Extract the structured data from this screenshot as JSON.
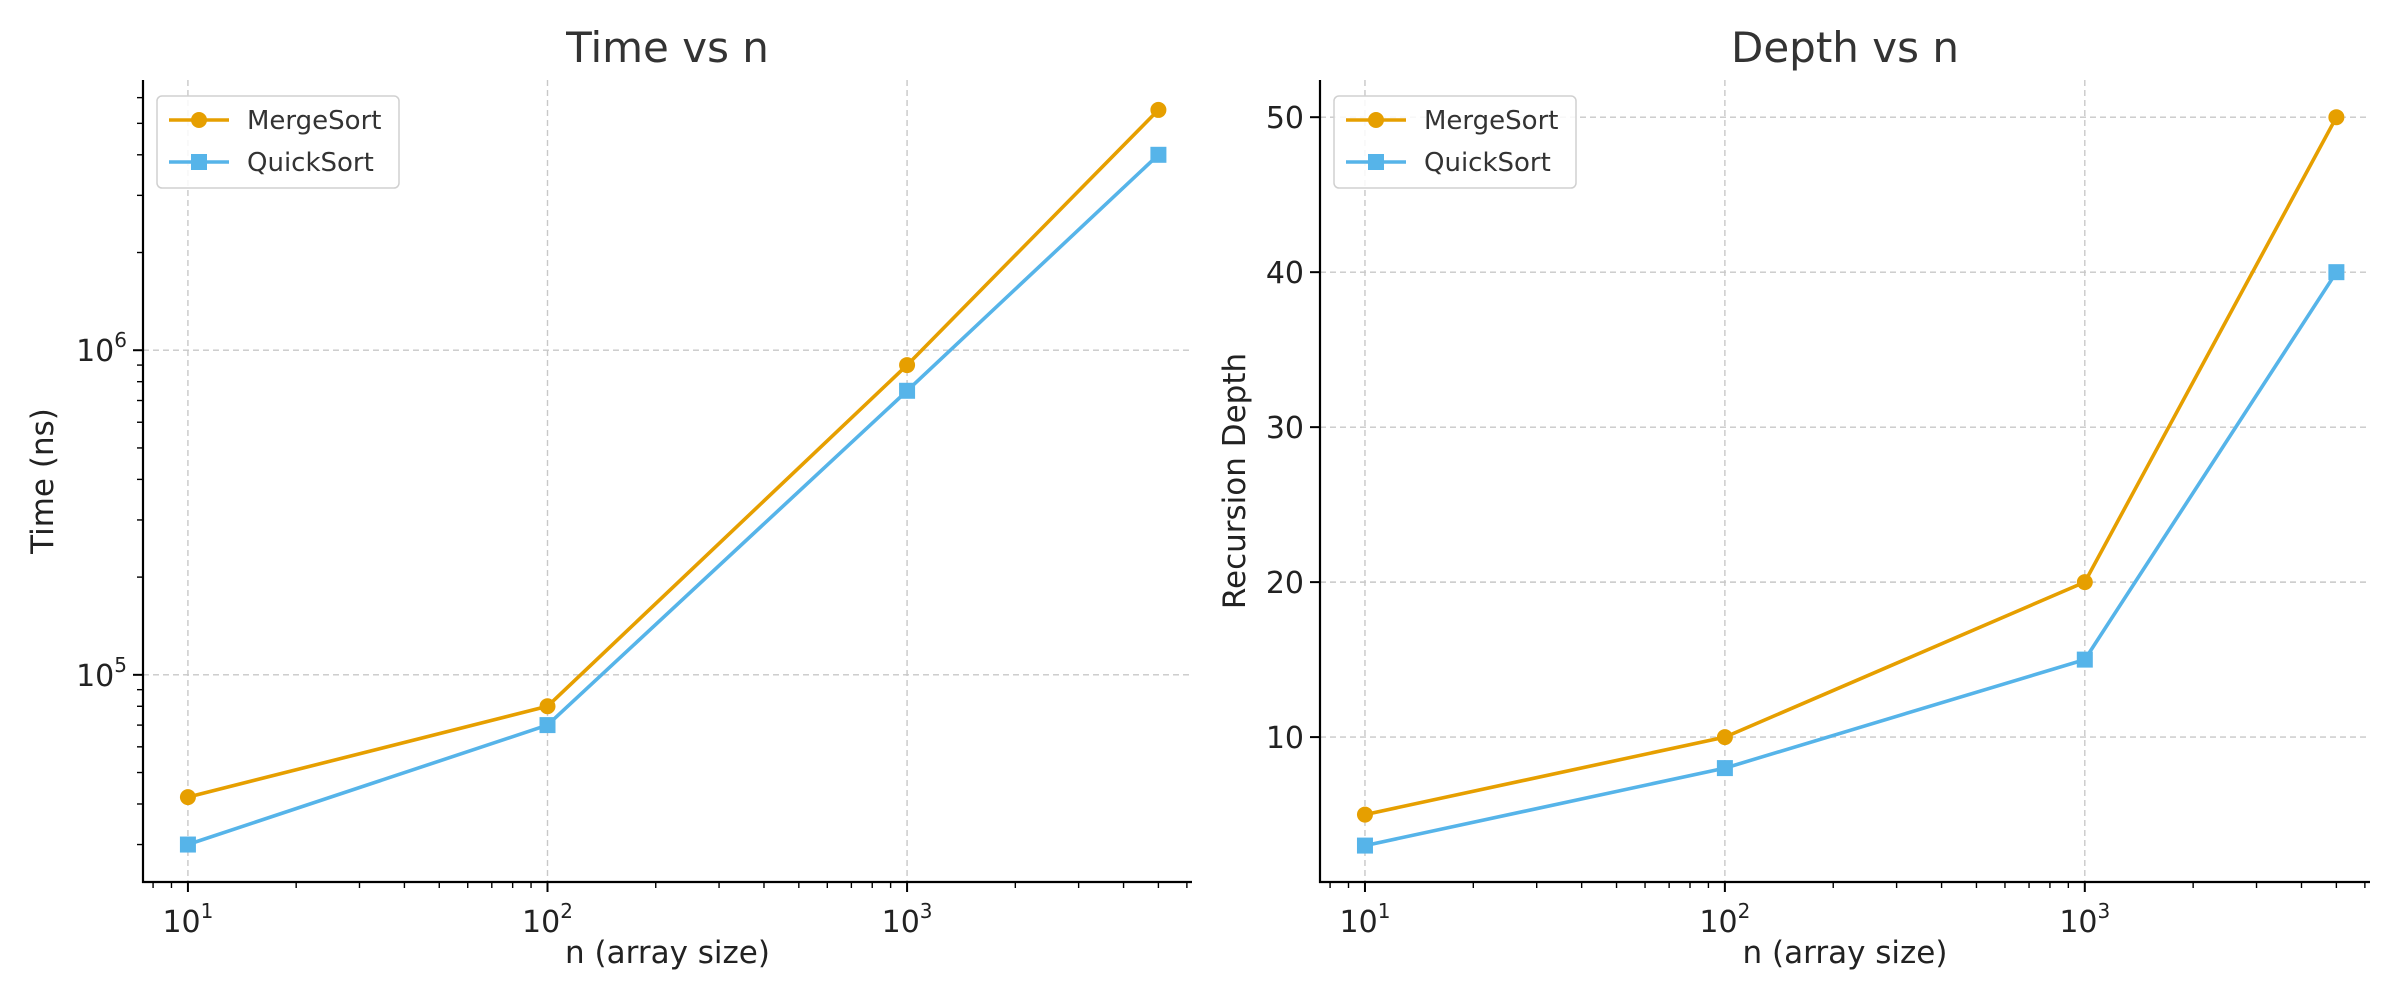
{
  "chart_data": [
    {
      "type": "line",
      "title": "Time vs n",
      "xlabel": "n (array size)",
      "ylabel": "Time (ns)",
      "xscale": "log",
      "yscale": "log",
      "x": [
        10,
        100,
        1000,
        5000
      ],
      "xlim": [
        7.5,
        6200
      ],
      "ylim": [
        23000,
        6800000
      ],
      "xticks": [
        {
          "value": 10,
          "base": "10",
          "exp": "1"
        },
        {
          "value": 100,
          "base": "10",
          "exp": "2"
        },
        {
          "value": 1000,
          "base": "10",
          "exp": "3"
        }
      ],
      "yticks": [
        {
          "value": 100000,
          "base": "10",
          "exp": "5"
        },
        {
          "value": 1000000,
          "base": "10",
          "exp": "6"
        }
      ],
      "grid": true,
      "legend": "top-left",
      "series": [
        {
          "name": "MergeSort",
          "color": "#E69F00",
          "marker": "circle",
          "values": [
            42000,
            80000,
            900000,
            5500000
          ]
        },
        {
          "name": "QuickSort",
          "color": "#56B4E9",
          "marker": "square",
          "values": [
            30000,
            70000,
            750000,
            4000000
          ]
        }
      ]
    },
    {
      "type": "line",
      "title": "Depth vs n",
      "xlabel": "n (array size)",
      "ylabel": "Recursion Depth",
      "xscale": "log",
      "yscale": "linear",
      "x": [
        10,
        100,
        1000,
        5000
      ],
      "xlim": [
        7.5,
        6200
      ],
      "ylim": [
        0.65,
        52.4
      ],
      "xticks": [
        {
          "value": 10,
          "base": "10",
          "exp": "1"
        },
        {
          "value": 100,
          "base": "10",
          "exp": "2"
        },
        {
          "value": 1000,
          "base": "10",
          "exp": "3"
        }
      ],
      "yticks": [
        {
          "value": 10,
          "label": "10"
        },
        {
          "value": 20,
          "label": "20"
        },
        {
          "value": 30,
          "label": "30"
        },
        {
          "value": 40,
          "label": "40"
        },
        {
          "value": 50,
          "label": "50"
        }
      ],
      "grid": true,
      "legend": "top-left",
      "series": [
        {
          "name": "MergeSort",
          "color": "#E69F00",
          "marker": "circle",
          "values": [
            5,
            10,
            20,
            50
          ]
        },
        {
          "name": "QuickSort",
          "color": "#56B4E9",
          "marker": "square",
          "values": [
            3,
            8,
            15,
            40
          ]
        }
      ]
    }
  ]
}
